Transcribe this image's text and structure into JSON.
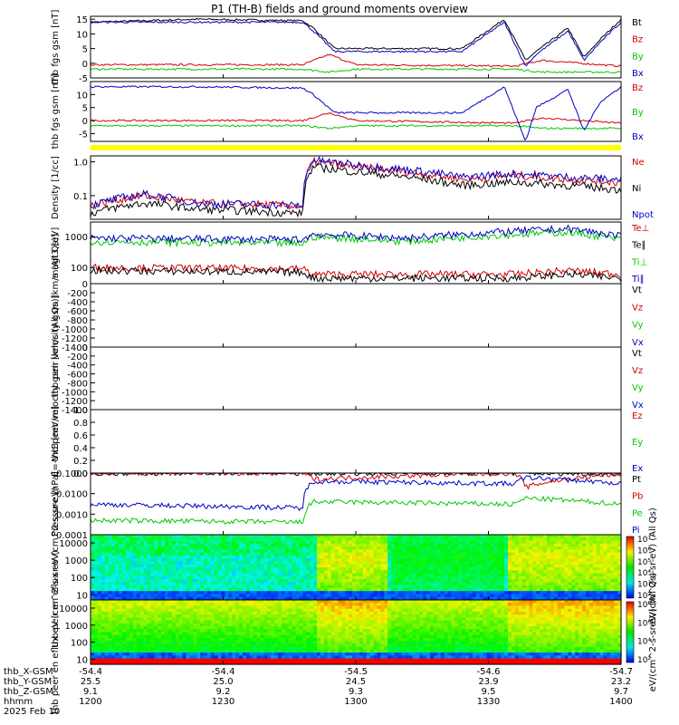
{
  "title": "P1 (TH-B) fields and ground moments overview",
  "colors": {
    "black": "#000000",
    "red": "#d40000",
    "green": "#00c800",
    "blue": "#0000c8",
    "flag_bar": "#ffff00"
  },
  "x_axis": {
    "ticks": [
      "1200",
      "1230",
      "1300",
      "1330",
      "1400"
    ],
    "rows": [
      {
        "label": "thb_X-GSM",
        "values": [
          "-54.4",
          "-54.4",
          "-54.5",
          "-54.6",
          "-54.7"
        ]
      },
      {
        "label": "thb_Y-GSM",
        "values": [
          "25.5",
          "25.0",
          "24.5",
          "23.9",
          "23.2"
        ]
      },
      {
        "label": "thb_Z-GSM",
        "values": [
          "9.1",
          "9.2",
          "9.3",
          "9.5",
          "9.7"
        ]
      },
      {
        "label": "hhmm",
        "values": [
          "1200",
          "1230",
          "1300",
          "1330",
          "1400"
        ]
      }
    ],
    "date": "2025 Feb 10"
  },
  "chart_data": [
    {
      "type": "line",
      "ylabel": "thb fgs gsm [nT]",
      "ylim": [
        -5,
        16
      ],
      "yticks": [
        "15",
        "10",
        "5",
        "0",
        "-5"
      ],
      "series": [
        {
          "name": "Bt",
          "color": "black",
          "x": [
            0,
            0.2,
            0.4,
            0.42,
            0.46,
            0.7,
            0.78,
            0.82,
            0.84,
            0.9,
            0.93,
            0.96,
            1.0
          ],
          "values": [
            14,
            15,
            14.5,
            12,
            5,
            5,
            15,
            1,
            4,
            12,
            2,
            8,
            15
          ]
        },
        {
          "name": "Bz",
          "color": "red",
          "x": [
            0,
            0.4,
            0.45,
            0.5,
            0.8,
            0.85,
            1.0
          ],
          "values": [
            -0.5,
            -0.5,
            3,
            -0.5,
            -1,
            1,
            -1
          ]
        },
        {
          "name": "By",
          "color": "green",
          "x": [
            0,
            0.4,
            0.45,
            0.5,
            0.8,
            0.85,
            1.0
          ],
          "values": [
            -2,
            -2,
            -3,
            -2,
            -2,
            -3,
            -3
          ]
        },
        {
          "name": "Bx",
          "color": "blue",
          "x": [
            0,
            0.4,
            0.42,
            0.46,
            0.7,
            0.78,
            0.82,
            0.84,
            0.9,
            0.93,
            0.96,
            1.0
          ],
          "values": [
            14,
            14,
            11,
            4,
            4,
            14,
            -1,
            3,
            11,
            1,
            7,
            14
          ]
        }
      ]
    },
    {
      "type": "line",
      "ylabel": "thb fgs gsm [nT]",
      "ylim": [
        -8,
        15
      ],
      "yticks": [
        "10",
        "5",
        "0",
        "-5"
      ],
      "series": [
        {
          "name": "Bz",
          "color": "red",
          "x": [
            0,
            0.4,
            0.45,
            0.5,
            0.8,
            0.85,
            1.0
          ],
          "values": [
            0,
            0,
            3,
            0,
            -1,
            1,
            -1
          ]
        },
        {
          "name": "By",
          "color": "green",
          "x": [
            0,
            0.4,
            0.45,
            0.5,
            0.8,
            0.85,
            1.0
          ],
          "values": [
            -2,
            -2,
            -3,
            -2,
            -2,
            -3,
            -3
          ]
        },
        {
          "name": "Bx",
          "color": "blue",
          "x": [
            0,
            0.2,
            0.4,
            0.42,
            0.46,
            0.7,
            0.78,
            0.82,
            0.84,
            0.9,
            0.93,
            0.96,
            1.0
          ],
          "values": [
            13,
            13,
            12.5,
            10,
            3,
            3,
            13,
            -8,
            5,
            12,
            -4,
            7,
            13
          ]
        }
      ]
    },
    {
      "type": "line",
      "ylabel": "Density [1/cc]",
      "scale": "log",
      "ylim": [
        0.02,
        1.5
      ],
      "yticks": [
        "1.0",
        "0.1"
      ],
      "series": [
        {
          "name": "Ne",
          "color": "red",
          "x": [
            0,
            0.1,
            0.2,
            0.4,
            0.42,
            0.5,
            0.7,
            0.8,
            0.9,
            1.0
          ],
          "values": [
            0.05,
            0.1,
            0.06,
            0.05,
            1.0,
            0.7,
            0.3,
            0.4,
            0.3,
            0.25
          ]
        },
        {
          "name": "Ni",
          "color": "black",
          "x": [
            0,
            0.1,
            0.2,
            0.4,
            0.42,
            0.5,
            0.7,
            0.8,
            0.9,
            1.0
          ],
          "values": [
            0.03,
            0.06,
            0.04,
            0.03,
            0.7,
            0.5,
            0.2,
            0.25,
            0.2,
            0.15
          ]
        },
        {
          "name": "Npot",
          "color": "blue",
          "x": [
            0,
            0.1,
            0.2,
            0.4,
            0.42,
            0.5,
            0.7,
            0.8,
            0.9,
            1.0
          ],
          "values": [
            0.05,
            0.11,
            0.06,
            0.05,
            1.1,
            0.8,
            0.35,
            0.45,
            0.35,
            0.3
          ]
        }
      ]
    },
    {
      "type": "line",
      "ylabel": "magt3 [eV]",
      "scale": "log",
      "ylim": [
        30,
        3000
      ],
      "yticks": [
        "1000",
        "100"
      ],
      "series": [
        {
          "name": "Te⊥",
          "color": "red",
          "x": [
            0,
            0.4,
            0.42,
            0.6,
            0.8,
            0.9,
            1.0
          ],
          "values": [
            100,
            90,
            60,
            60,
            60,
            80,
            60
          ]
        },
        {
          "name": "Te∥",
          "color": "black",
          "x": [
            0,
            0.4,
            0.42,
            0.6,
            0.8,
            0.9,
            1.0
          ],
          "values": [
            80,
            70,
            45,
            45,
            45,
            60,
            45
          ]
        },
        {
          "name": "Ti⊥",
          "color": "green",
          "x": [
            0,
            0.4,
            0.42,
            0.6,
            0.8,
            0.9,
            1.0
          ],
          "values": [
            700,
            600,
            1000,
            700,
            1200,
            1400,
            800
          ]
        },
        {
          "name": "Ti∥",
          "color": "blue",
          "x": [
            0,
            0.4,
            0.42,
            0.6,
            0.8,
            0.9,
            1.0
          ],
          "values": [
            900,
            800,
            1200,
            900,
            1500,
            1800,
            1000
          ]
        }
      ]
    },
    {
      "type": "line",
      "ylabel": "thb peir velocity gsm [km/s (All Qs)]",
      "ylim": [
        -1400,
        0
      ],
      "yticks": [
        "0",
        "-200",
        "-400",
        "-600",
        "-800",
        "-1000",
        "-1200",
        "-1400"
      ],
      "series": [
        {
          "name": "Vt",
          "color": "black",
          "values": []
        },
        {
          "name": "Vz",
          "color": "red",
          "values": []
        },
        {
          "name": "Vy",
          "color": "green",
          "values": []
        },
        {
          "name": "Vx",
          "color": "blue",
          "values": []
        }
      ]
    },
    {
      "type": "line",
      "ylabel": "thb peer velocity gsm [km/s (All Qs)]",
      "ylim": [
        -1400,
        0
      ],
      "yticks": [
        "0",
        "-200",
        "-400",
        "-600",
        "-800",
        "-1000",
        "-1200",
        "-1400"
      ],
      "series": [
        {
          "name": "Vt",
          "color": "black",
          "values": []
        },
        {
          "name": "Vz",
          "color": "red",
          "values": []
        },
        {
          "name": "Vy",
          "color": "green",
          "values": []
        },
        {
          "name": "Vx",
          "color": "blue",
          "values": []
        }
      ]
    },
    {
      "type": "line",
      "ylabel": "E=-VxB [mV/m]",
      "ylim": [
        0,
        1.0
      ],
      "yticks": [
        "1.0",
        "0.8",
        "0.6",
        "0.4",
        "0.2",
        "0.0"
      ],
      "series": [
        {
          "name": "Ez",
          "color": "red",
          "values": []
        },
        {
          "name": "Ey",
          "color": "green",
          "values": []
        },
        {
          "name": "Ex",
          "color": "blue",
          "values": []
        }
      ]
    },
    {
      "type": "line",
      "ylabel": "Pressure [nPa]",
      "scale": "log",
      "ylim": [
        0.0001,
        0.1
      ],
      "yticks": [
        "0.1000",
        "0.0100",
        "0.0010",
        "0.0001"
      ],
      "series": [
        {
          "name": "Pt",
          "color": "black",
          "x": [
            0,
            0.4,
            0.42,
            0.8,
            0.82,
            1.0
          ],
          "values": [
            0.1,
            0.1,
            0.1,
            0.1,
            0.1,
            0.09
          ]
        },
        {
          "name": "Pb",
          "color": "red",
          "x": [
            0,
            0.4,
            0.42,
            0.8,
            0.82,
            1.0
          ],
          "values": [
            0.1,
            0.1,
            0.05,
            0.1,
            0.02,
            0.09
          ]
        },
        {
          "name": "Pe",
          "color": "green",
          "x": [
            0,
            0.4,
            0.42,
            0.8,
            0.82,
            1.0
          ],
          "values": [
            0.0005,
            0.0004,
            0.004,
            0.003,
            0.006,
            0.003
          ]
        },
        {
          "name": "Pi",
          "color": "blue",
          "x": [
            0,
            0.4,
            0.42,
            0.8,
            0.82,
            1.0
          ],
          "values": [
            0.003,
            0.002,
            0.04,
            0.03,
            0.06,
            0.03
          ]
        }
      ]
    },
    {
      "type": "heatmap",
      "ylabel": "thb peir en eflux eV (cm^2-s-sr-eV)",
      "scale": "log",
      "ylim": [
        5,
        30000
      ],
      "yticks": [
        "10000",
        "1000",
        "100",
        "10"
      ],
      "colorbar": {
        "label": "eV/(cm^2-s-sr-eV) (All Qs)",
        "ticks": [
          "10⁷",
          "10⁶",
          "10⁵",
          "10⁴",
          "10³",
          "10²"
        ]
      }
    },
    {
      "type": "heatmap",
      "ylabel": "thb peer en eflux eV (cm^2-s-sr-eV)",
      "scale": "log",
      "ylim": [
        5,
        30000
      ],
      "yticks": [
        "10000",
        "1000",
        "100",
        "10"
      ],
      "colorbar": {
        "label": "eV/(cm^2-s-sr-eV) (All Qs)",
        "ticks": [
          "10⁸",
          "10⁶",
          "10⁴",
          "10²"
        ]
      }
    }
  ]
}
